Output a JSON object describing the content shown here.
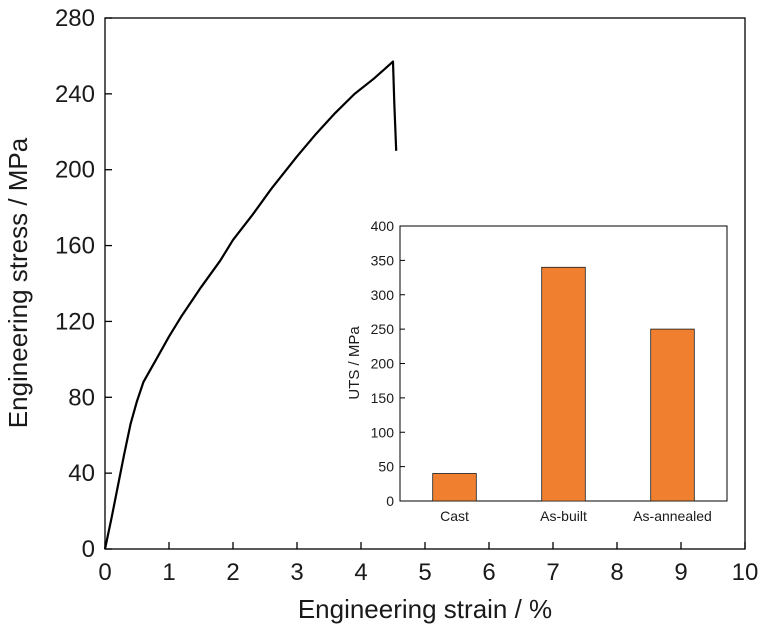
{
  "chart_data": [
    {
      "type": "line",
      "xlabel": "Engineering strain / %",
      "ylabel": "Engineering stress / MPa",
      "xlim": [
        0,
        10
      ],
      "ylim": [
        0,
        280
      ],
      "xticks": [
        0,
        1,
        2,
        3,
        4,
        5,
        6,
        7,
        8,
        9,
        10
      ],
      "yticks": [
        0,
        40,
        80,
        120,
        160,
        200,
        240,
        280
      ],
      "grid": false,
      "series": [
        {
          "color": "#000000",
          "x": [
            0,
            0.1,
            0.2,
            0.3,
            0.4,
            0.5,
            0.6,
            0.8,
            1.0,
            1.2,
            1.5,
            1.8,
            2.0,
            2.3,
            2.6,
            3.0,
            3.3,
            3.6,
            3.9,
            4.2,
            4.4,
            4.5,
            4.52,
            4.55
          ],
          "y": [
            0,
            16,
            33,
            50,
            66,
            78,
            88,
            100,
            112,
            123,
            138,
            152,
            163,
            176,
            190,
            207,
            219,
            230,
            240,
            248,
            254,
            257,
            235,
            210
          ]
        }
      ]
    },
    {
      "type": "bar",
      "ylabel": "UTS / MPa",
      "ylim": [
        0,
        400
      ],
      "yticks": [
        0,
        50,
        100,
        150,
        200,
        250,
        300,
        350,
        400
      ],
      "categories": [
        "Cast",
        "As-built",
        "As-annealed"
      ],
      "values": [
        40,
        340,
        250
      ],
      "bar_color": "#f08030",
      "grid": false
    }
  ]
}
